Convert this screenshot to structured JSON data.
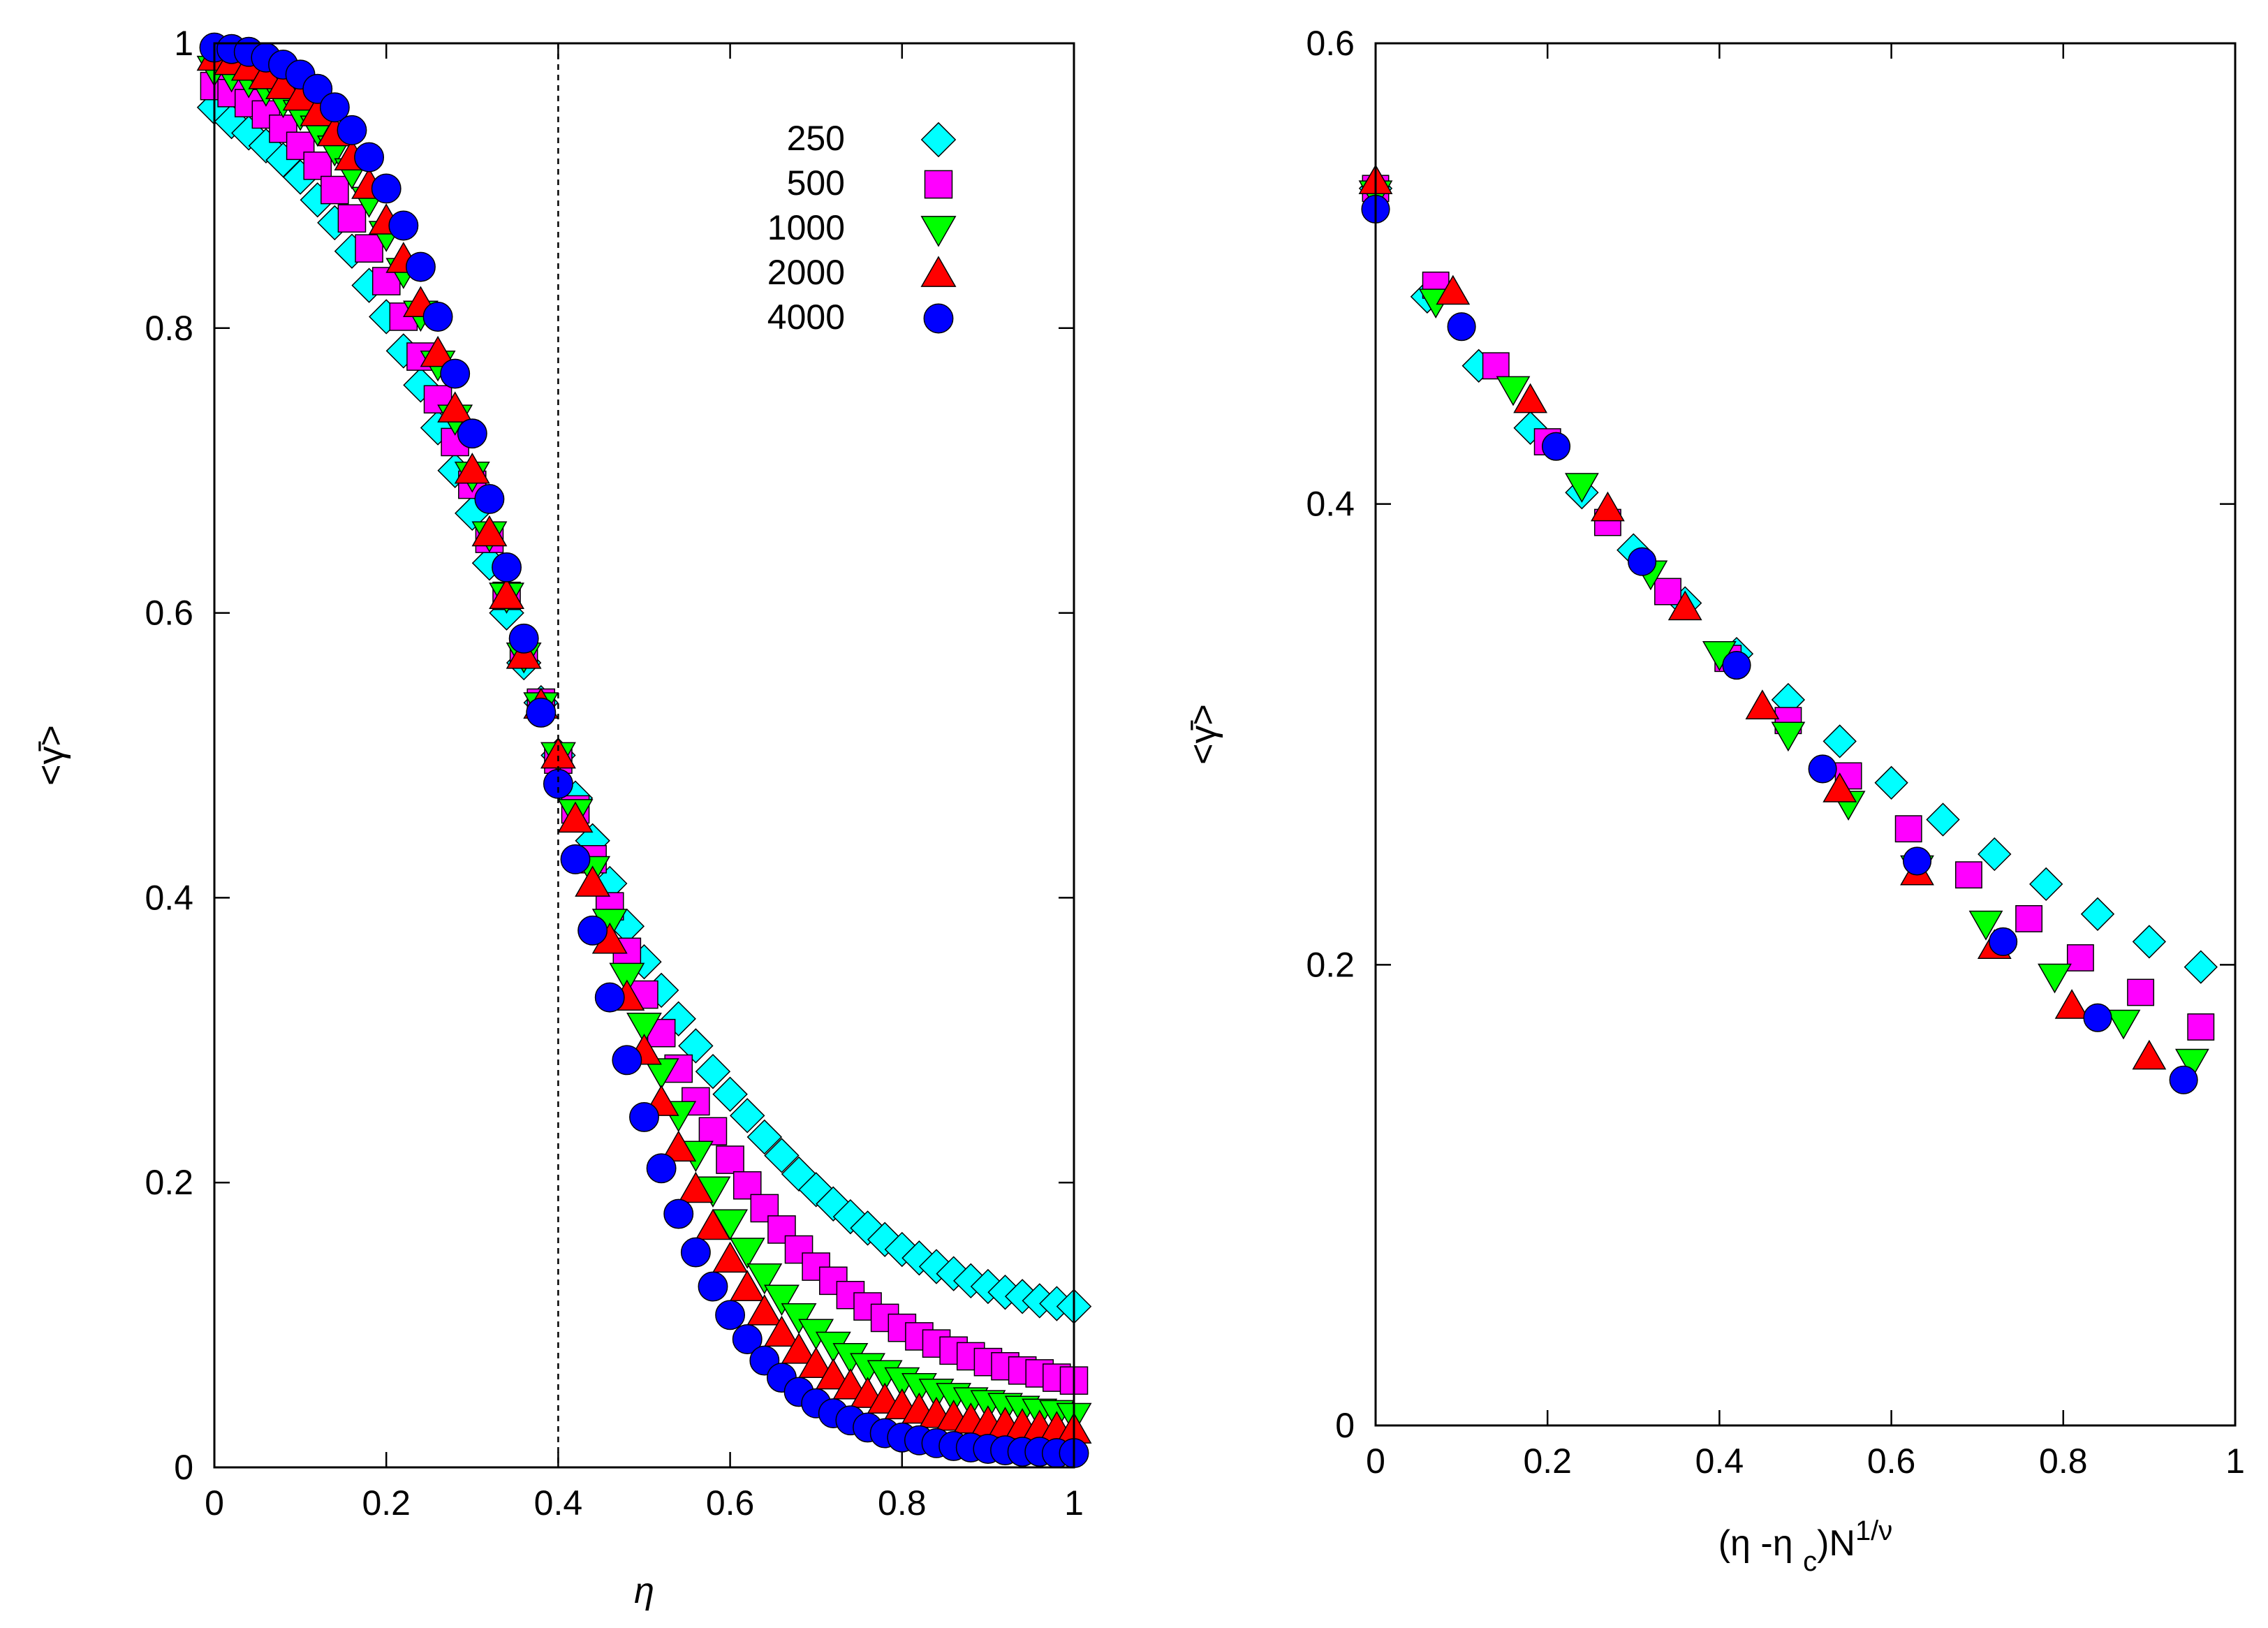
{
  "figure": {
    "series_names": [
      "250",
      "500",
      "1000",
      "2000",
      "4000"
    ]
  },
  "chart_data": [
    {
      "type": "scatter",
      "title": "",
      "xlabel": "η",
      "ylabel": "<γ̄>",
      "xlim": [
        0,
        1
      ],
      "ylim": [
        0,
        1
      ],
      "xticks": [
        "0",
        "0.2",
        "0.4",
        "0.6",
        "0.8",
        "1"
      ],
      "yticks": [
        "0",
        "0.2",
        "0.4",
        "0.6",
        "0.8",
        "1"
      ],
      "vline": 0.4,
      "legend": "top-right",
      "series": [
        {
          "name": "250",
          "marker": "diamond",
          "color": "#00ffff",
          "x": [
            0.0,
            0.02,
            0.04,
            0.06,
            0.08,
            0.1,
            0.12,
            0.14,
            0.16,
            0.18,
            0.2,
            0.22,
            0.24,
            0.26,
            0.28,
            0.3,
            0.32,
            0.34,
            0.36,
            0.38,
            0.4,
            0.42,
            0.44,
            0.46,
            0.48,
            0.5,
            0.52,
            0.54,
            0.56,
            0.58,
            0.6,
            0.62,
            0.64,
            0.66,
            0.68,
            0.7,
            0.72,
            0.74,
            0.76,
            0.78,
            0.8,
            0.82,
            0.84,
            0.86,
            0.88,
            0.9,
            0.92,
            0.94,
            0.96,
            0.98,
            1.0
          ],
          "y": [
            0.955,
            0.945,
            0.937,
            0.928,
            0.918,
            0.906,
            0.89,
            0.874,
            0.854,
            0.83,
            0.808,
            0.784,
            0.76,
            0.73,
            0.7,
            0.67,
            0.635,
            0.6,
            0.565,
            0.537,
            0.5,
            0.47,
            0.44,
            0.41,
            0.38,
            0.355,
            0.335,
            0.315,
            0.296,
            0.278,
            0.262,
            0.247,
            0.232,
            0.219,
            0.206,
            0.195,
            0.185,
            0.176,
            0.168,
            0.16,
            0.153,
            0.147,
            0.141,
            0.136,
            0.131,
            0.127,
            0.123,
            0.12,
            0.117,
            0.115,
            0.113
          ]
        },
        {
          "name": "500",
          "marker": "square",
          "color": "#ff00ff",
          "x": [
            0.0,
            0.02,
            0.04,
            0.06,
            0.08,
            0.1,
            0.12,
            0.14,
            0.16,
            0.18,
            0.2,
            0.22,
            0.24,
            0.26,
            0.28,
            0.3,
            0.32,
            0.34,
            0.36,
            0.38,
            0.4,
            0.42,
            0.44,
            0.46,
            0.48,
            0.5,
            0.52,
            0.54,
            0.56,
            0.58,
            0.6,
            0.62,
            0.64,
            0.66,
            0.68,
            0.7,
            0.72,
            0.74,
            0.76,
            0.78,
            0.8,
            0.82,
            0.84,
            0.86,
            0.88,
            0.9,
            0.92,
            0.94,
            0.96,
            0.98,
            1.0
          ],
          "y": [
            0.97,
            0.965,
            0.958,
            0.95,
            0.94,
            0.928,
            0.914,
            0.897,
            0.877,
            0.856,
            0.833,
            0.808,
            0.78,
            0.75,
            0.72,
            0.69,
            0.652,
            0.612,
            0.572,
            0.537,
            0.497,
            0.462,
            0.427,
            0.394,
            0.362,
            0.332,
            0.305,
            0.28,
            0.257,
            0.236,
            0.216,
            0.198,
            0.182,
            0.167,
            0.153,
            0.141,
            0.131,
            0.121,
            0.113,
            0.105,
            0.098,
            0.092,
            0.087,
            0.082,
            0.078,
            0.074,
            0.071,
            0.068,
            0.066,
            0.063,
            0.061
          ]
        },
        {
          "name": "1000",
          "marker": "triangle-down",
          "color": "#00ff00",
          "x": [
            0.0,
            0.02,
            0.04,
            0.06,
            0.08,
            0.1,
            0.12,
            0.14,
            0.16,
            0.18,
            0.2,
            0.22,
            0.24,
            0.26,
            0.28,
            0.3,
            0.32,
            0.34,
            0.36,
            0.38,
            0.4,
            0.42,
            0.44,
            0.46,
            0.48,
            0.5,
            0.52,
            0.54,
            0.56,
            0.58,
            0.6,
            0.62,
            0.64,
            0.66,
            0.68,
            0.7,
            0.72,
            0.74,
            0.76,
            0.78,
            0.8,
            0.82,
            0.84,
            0.86,
            0.88,
            0.9,
            0.92,
            0.94,
            0.96,
            0.98,
            1.0
          ],
          "y": [
            0.982,
            0.978,
            0.974,
            0.968,
            0.96,
            0.951,
            0.94,
            0.926,
            0.91,
            0.89,
            0.866,
            0.84,
            0.81,
            0.775,
            0.737,
            0.697,
            0.655,
            0.612,
            0.57,
            0.535,
            0.5,
            0.46,
            0.42,
            0.383,
            0.345,
            0.31,
            0.278,
            0.248,
            0.22,
            0.195,
            0.172,
            0.152,
            0.134,
            0.119,
            0.106,
            0.095,
            0.086,
            0.078,
            0.071,
            0.066,
            0.061,
            0.057,
            0.053,
            0.05,
            0.047,
            0.045,
            0.043,
            0.041,
            0.039,
            0.038,
            0.036
          ]
        },
        {
          "name": "2000",
          "marker": "triangle-up",
          "color": "#ff0000",
          "x": [
            0.0,
            0.02,
            0.04,
            0.06,
            0.08,
            0.1,
            0.12,
            0.14,
            0.16,
            0.18,
            0.2,
            0.22,
            0.24,
            0.26,
            0.28,
            0.3,
            0.32,
            0.34,
            0.36,
            0.38,
            0.4,
            0.42,
            0.44,
            0.46,
            0.48,
            0.5,
            0.52,
            0.54,
            0.56,
            0.58,
            0.6,
            0.62,
            0.64,
            0.66,
            0.68,
            0.7,
            0.72,
            0.74,
            0.76,
            0.78,
            0.8,
            0.82,
            0.84,
            0.86,
            0.88,
            0.9,
            0.92,
            0.94,
            0.96,
            0.98,
            1.0
          ],
          "y": [
            0.99,
            0.987,
            0.983,
            0.977,
            0.97,
            0.962,
            0.951,
            0.937,
            0.92,
            0.9,
            0.875,
            0.848,
            0.817,
            0.782,
            0.743,
            0.7,
            0.656,
            0.612,
            0.57,
            0.535,
            0.5,
            0.455,
            0.41,
            0.37,
            0.33,
            0.292,
            0.256,
            0.224,
            0.195,
            0.169,
            0.146,
            0.126,
            0.109,
            0.094,
            0.082,
            0.072,
            0.064,
            0.057,
            0.051,
            0.047,
            0.043,
            0.04,
            0.037,
            0.035,
            0.033,
            0.031,
            0.03,
            0.029,
            0.028,
            0.027,
            0.026
          ]
        },
        {
          "name": "4000",
          "marker": "circle",
          "color": "#0000ff",
          "x": [
            0.0,
            0.02,
            0.04,
            0.06,
            0.08,
            0.1,
            0.12,
            0.14,
            0.16,
            0.18,
            0.2,
            0.22,
            0.24,
            0.26,
            0.28,
            0.3,
            0.32,
            0.34,
            0.36,
            0.38,
            0.4,
            0.42,
            0.44,
            0.46,
            0.48,
            0.5,
            0.52,
            0.54,
            0.56,
            0.58,
            0.6,
            0.62,
            0.64,
            0.66,
            0.68,
            0.7,
            0.72,
            0.74,
            0.76,
            0.78,
            0.8,
            0.82,
            0.84,
            0.86,
            0.88,
            0.9,
            0.92,
            0.94,
            0.96,
            0.98,
            1.0
          ],
          "y": [
            0.997,
            0.996,
            0.994,
            0.99,
            0.985,
            0.978,
            0.968,
            0.955,
            0.939,
            0.92,
            0.898,
            0.872,
            0.843,
            0.808,
            0.768,
            0.726,
            0.68,
            0.632,
            0.582,
            0.53,
            0.48,
            0.427,
            0.377,
            0.33,
            0.286,
            0.246,
            0.21,
            0.178,
            0.151,
            0.127,
            0.107,
            0.09,
            0.075,
            0.063,
            0.053,
            0.045,
            0.038,
            0.033,
            0.028,
            0.024,
            0.021,
            0.019,
            0.017,
            0.015,
            0.014,
            0.013,
            0.012,
            0.011,
            0.011,
            0.01,
            0.01
          ]
        }
      ]
    },
    {
      "type": "scatter",
      "title": "",
      "xlabel": "(η -η c)N1/ν",
      "ylabel": "<γ̄>",
      "xlim": [
        0,
        1
      ],
      "ylim": [
        0,
        0.6
      ],
      "xticks": [
        "0",
        "0.2",
        "0.4",
        "0.6",
        "0.8",
        "1"
      ],
      "yticks": [
        "0",
        "0.2",
        "0.4",
        "0.6"
      ],
      "series": [
        {
          "name": "250",
          "marker": "diamond",
          "color": "#00ffff",
          "x": [
            0.0,
            0.06,
            0.12,
            0.18,
            0.24,
            0.3,
            0.36,
            0.42,
            0.48,
            0.54,
            0.6,
            0.66,
            0.72,
            0.78,
            0.84,
            0.9,
            0.96
          ],
          "y": [
            0.537,
            0.49,
            0.46,
            0.433,
            0.405,
            0.38,
            0.357,
            0.335,
            0.315,
            0.297,
            0.279,
            0.263,
            0.248,
            0.235,
            0.222,
            0.21,
            0.199
          ]
        },
        {
          "name": "500",
          "marker": "square",
          "color": "#ff00ff",
          "x": [
            0.0,
            0.07,
            0.14,
            0.2,
            0.27,
            0.34,
            0.41,
            0.48,
            0.55,
            0.62,
            0.69,
            0.76,
            0.82,
            0.89,
            0.96
          ],
          "y": [
            0.537,
            0.495,
            0.46,
            0.427,
            0.392,
            0.362,
            0.333,
            0.306,
            0.282,
            0.259,
            0.239,
            0.22,
            0.203,
            0.188,
            0.173
          ]
        },
        {
          "name": "1000",
          "marker": "triangle-down",
          "color": "#00ff00",
          "x": [
            0.0,
            0.07,
            0.16,
            0.24,
            0.32,
            0.4,
            0.48,
            0.55,
            0.63,
            0.71,
            0.79,
            0.87,
            0.95
          ],
          "y": [
            0.535,
            0.488,
            0.45,
            0.408,
            0.37,
            0.335,
            0.3,
            0.27,
            0.242,
            0.218,
            0.195,
            0.175,
            0.158
          ]
        },
        {
          "name": "2000",
          "marker": "triangle-up",
          "color": "#ff0000",
          "x": [
            0.0,
            0.09,
            0.18,
            0.27,
            0.36,
            0.45,
            0.54,
            0.63,
            0.72,
            0.81,
            0.9
          ],
          "y": [
            0.54,
            0.492,
            0.445,
            0.398,
            0.355,
            0.312,
            0.276,
            0.24,
            0.208,
            0.182,
            0.16
          ]
        },
        {
          "name": "4000",
          "marker": "circle",
          "color": "#0000ff",
          "x": [
            0.0,
            0.1,
            0.21,
            0.31,
            0.42,
            0.52,
            0.63,
            0.73,
            0.84,
            0.94
          ],
          "y": [
            0.528,
            0.477,
            0.425,
            0.375,
            0.33,
            0.285,
            0.245,
            0.21,
            0.177,
            0.15
          ]
        }
      ]
    }
  ]
}
